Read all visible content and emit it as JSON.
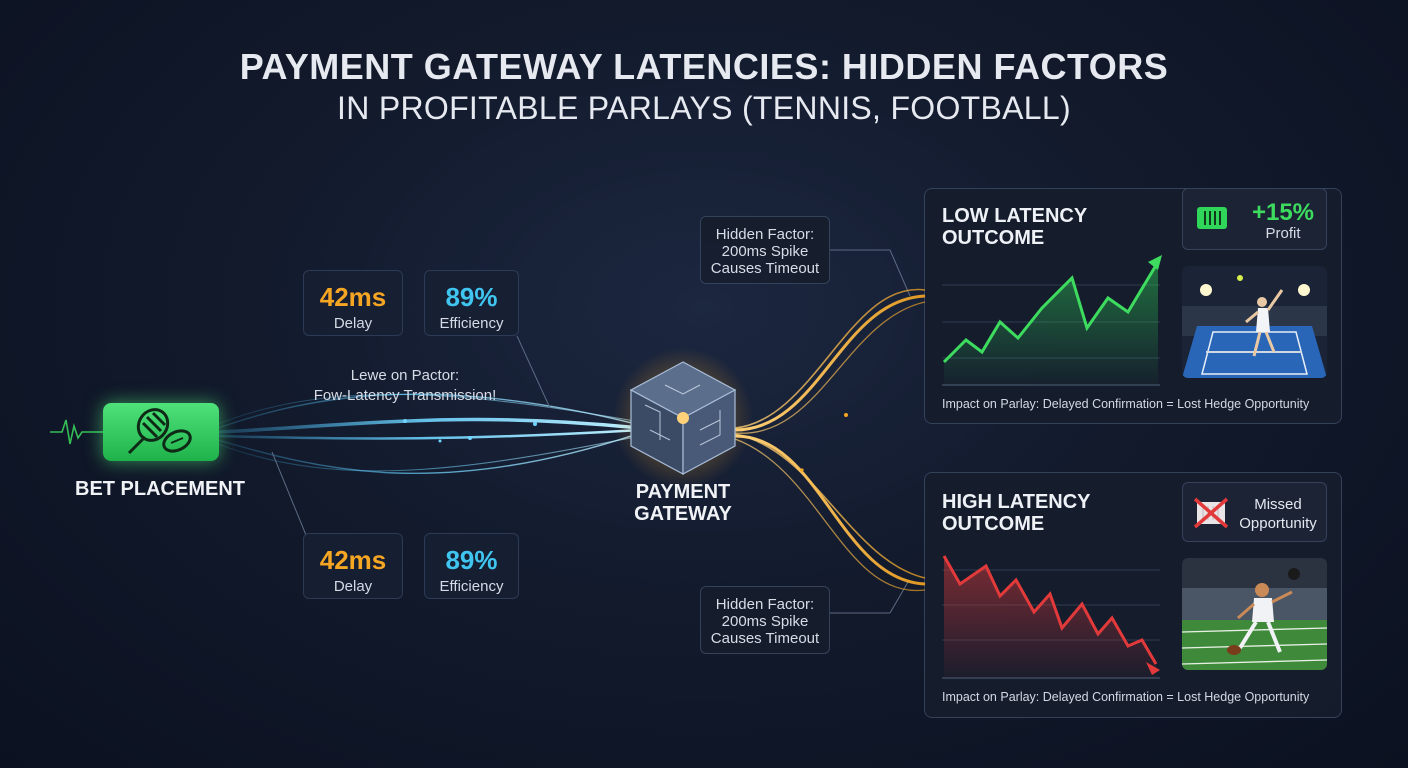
{
  "title": {
    "line1": "PAYMENT GATEWAY LATENCIES: HIDDEN FACTORS",
    "line2": "IN PROFITABLE PARLAYS (TENNIS, FOOTBALL)"
  },
  "source_node": {
    "label": "BET PLACEMENT",
    "icon": "tennis-football-icon"
  },
  "gateway_node": {
    "label_line1": "PAYMENT",
    "label_line2": "GATEWAY",
    "icon": "chip-cube-icon"
  },
  "metrics_top": [
    {
      "value": "42ms",
      "label": "Delay"
    },
    {
      "value": "89%",
      "label": "Efficiency"
    }
  ],
  "metrics_bottom": [
    {
      "value": "42ms",
      "label": "Delay"
    },
    {
      "value": "89%",
      "label": "Efficiency"
    }
  ],
  "transmission_label": {
    "line1": "Lewe on Pactor:",
    "line2": "Fow-Latency Transmission!"
  },
  "hidden_factor_top": {
    "line1": "Hidden Factor:",
    "line2": "200ms Spike",
    "line3": "Causes Timeout"
  },
  "hidden_factor_bottom": {
    "line1": "Hidden Factor:",
    "line2": "200ms Spike",
    "line3": "Causes Timeout"
  },
  "low_latency": {
    "title_line1": "LOW LATENCY",
    "title_line2": "OUTCOME",
    "badge_value": "+15%",
    "badge_label": "Profit",
    "caption": "Impact on Parlay: Delayed Confirmation = Lost Hedge Opportunity",
    "trend": "up",
    "color": "#3ddc5f"
  },
  "high_latency": {
    "title_line1": "HIGH LATENCY",
    "title_line2": "OUTCOME",
    "badge_line1": "Missed",
    "badge_line2": "Opportunity",
    "caption": "Impact on Parlay: Delayed Confirmation = Lost Hedge Opportunity",
    "trend": "down",
    "color": "#e23a3a"
  },
  "colors": {
    "blue_flow": "#3fb6f0",
    "orange_flow": "#f5a623",
    "green": "#3ddc5f",
    "red": "#e23a3a"
  }
}
